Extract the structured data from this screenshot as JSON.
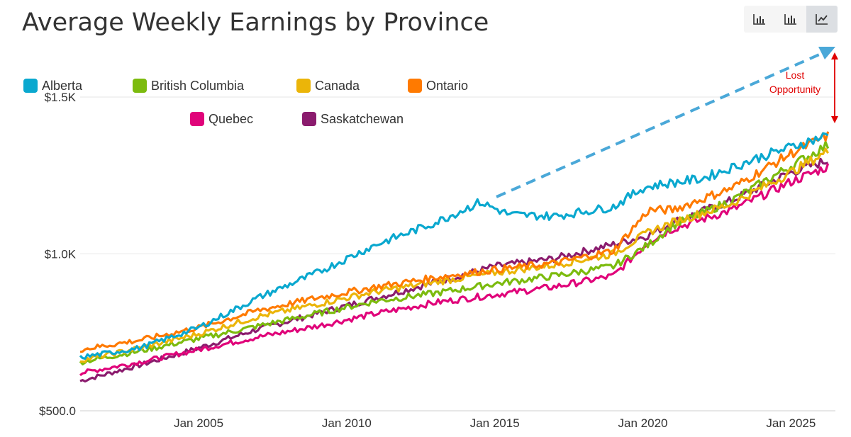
{
  "title": "Average Weekly Earnings by Province",
  "toolbar": {
    "buttons": [
      {
        "icon": "bar-chart-icon",
        "active": false
      },
      {
        "icon": "stacked-bar-chart-icon",
        "active": false
      },
      {
        "icon": "line-chart-icon",
        "active": true
      }
    ]
  },
  "annotation": {
    "text_line1": "Lost",
    "text_line2": "Opportunity",
    "color": "#e00000",
    "arrow_color": "#4aa8d8"
  },
  "chart_data": {
    "type": "line",
    "title": "Average Weekly Earnings by Province",
    "xlabel": "",
    "ylabel": "",
    "x_range": [
      2001.0,
      2026.5
    ],
    "ylim": [
      500,
      1500
    ],
    "grid": true,
    "legend_position": "top-left",
    "x_ticks": [
      {
        "value": 2005,
        "label": "Jan 2005"
      },
      {
        "value": 2010,
        "label": "Jan 2010"
      },
      {
        "value": 2015,
        "label": "Jan 2015"
      },
      {
        "value": 2020,
        "label": "Jan 2020"
      },
      {
        "value": 2025,
        "label": "Jan 2025"
      }
    ],
    "y_ticks": [
      {
        "value": 500,
        "label": "$500.0"
      },
      {
        "value": 1000,
        "label": "$1.0K"
      },
      {
        "value": 1500,
        "label": "$1.5K"
      }
    ],
    "series": [
      {
        "name": "Alberta",
        "color": "#0aa8cf",
        "x": [
          2001,
          2003,
          2005,
          2007,
          2009,
          2011,
          2013,
          2014.5,
          2015.5,
          2017,
          2019,
          2020,
          2020.5,
          2022,
          2024,
          2026.3
        ],
        "y": [
          670,
          700,
          765,
          860,
          940,
          1030,
          1100,
          1165,
          1125,
          1120,
          1150,
          1210,
          1220,
          1240,
          1310,
          1380
        ]
      },
      {
        "name": "British Columbia",
        "color": "#7cbb0e",
        "x": [
          2001,
          2003,
          2005,
          2007,
          2009,
          2011,
          2013,
          2015,
          2017,
          2019,
          2020.2,
          2021,
          2023,
          2025,
          2026.3
        ],
        "y": [
          655,
          690,
          730,
          770,
          810,
          850,
          875,
          905,
          930,
          960,
          1030,
          1090,
          1170,
          1280,
          1350
        ]
      },
      {
        "name": "Canada",
        "color": "#ebb509",
        "x": [
          2001,
          2003,
          2005,
          2007,
          2009,
          2011,
          2013,
          2015,
          2017,
          2019,
          2020.2,
          2021,
          2023,
          2025,
          2026.3
        ],
        "y": [
          660,
          700,
          745,
          800,
          840,
          880,
          910,
          940,
          965,
          1000,
          1070,
          1100,
          1160,
          1260,
          1330
        ]
      },
      {
        "name": "Ontario",
        "color": "#ff7a00",
        "x": [
          2001,
          2003,
          2005,
          2007,
          2009,
          2011,
          2013,
          2015,
          2017,
          2019,
          2020.2,
          2021,
          2023,
          2025,
          2026.3
        ],
        "y": [
          695,
          725,
          765,
          820,
          860,
          895,
          925,
          950,
          970,
          1010,
          1140,
          1140,
          1210,
          1320,
          1380
        ]
      },
      {
        "name": "Quebec",
        "color": "#e0047a",
        "x": [
          2001,
          2003,
          2005,
          2007,
          2009,
          2011,
          2013,
          2015,
          2017,
          2019,
          2020.2,
          2021,
          2023,
          2025,
          2026.3
        ],
        "y": [
          620,
          655,
          695,
          735,
          770,
          810,
          845,
          870,
          895,
          930,
          1040,
          1080,
          1140,
          1230,
          1280
        ]
      },
      {
        "name": "Saskatchewan",
        "color": "#8b1c6e",
        "x": [
          2001,
          2003,
          2005,
          2007,
          2009,
          2011,
          2013,
          2015,
          2017,
          2019,
          2020.2,
          2021,
          2023,
          2025,
          2026.3
        ],
        "y": [
          595,
          645,
          700,
          760,
          810,
          860,
          910,
          960,
          985,
          1030,
          1060,
          1100,
          1170,
          1260,
          1300
        ]
      }
    ]
  }
}
